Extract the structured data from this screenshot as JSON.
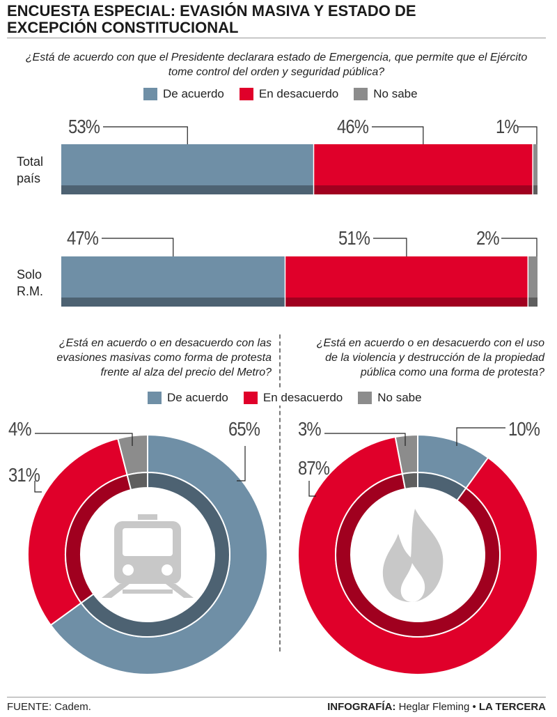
{
  "header": {
    "title_line1": "ENCUESTA ESPECIAL: EVASIÓN MASIVA Y ESTADO DE",
    "title_line2": "EXCEPCIÓN CONSTITUCIONAL"
  },
  "colors": {
    "agree": "#6f8fa6",
    "agree_dark": "#4d6272",
    "disagree": "#e0002a",
    "disagree_dark": "#a0001f",
    "unsure": "#8c8c8c",
    "unsure_dark": "#5e5e5e"
  },
  "legend": {
    "agree": "De acuerdo",
    "disagree": "En desacuerdo",
    "unsure": "No sabe"
  },
  "q1": {
    "text_line1": "¿Está de acuerdo con que el Presidente declarara estado de Emergencia, que permite que el Ejército",
    "text_line2": "tome control del orden y seguridad pública?"
  },
  "q2": {
    "text_line1": "¿Está en acuerdo o en desacuerdo con las",
    "text_line2": "evasiones masivas como forma de protesta",
    "text_line3": "frente al alza del precio del Metro?"
  },
  "q3": {
    "text_line1": "¿Está en acuerdo o en desacuerdo con el uso",
    "text_line2": "de la violencia y destrucción de la propiedad",
    "text_line3": "pública como una forma de protesta?"
  },
  "rows": {
    "total_line1": "Total",
    "total_line2": "país",
    "rm_line1": "Solo",
    "rm_line2": "R.M."
  },
  "chart_data": [
    {
      "type": "bar",
      "orientation": "horizontal-stacked",
      "categories": [
        "Total país",
        "Solo R.M."
      ],
      "series": [
        {
          "name": "De acuerdo",
          "values": [
            53,
            47
          ]
        },
        {
          "name": "En desacuerdo",
          "values": [
            46,
            51
          ]
        },
        {
          "name": "No sabe",
          "values": [
            1,
            2
          ]
        }
      ],
      "labels": {
        "total": [
          "53%",
          "46%",
          "1%"
        ],
        "rm": [
          "47%",
          "51%",
          "2%"
        ]
      }
    },
    {
      "type": "pie",
      "style": "donut",
      "icon": "train-icon",
      "slices": [
        {
          "name": "De acuerdo",
          "value": 65,
          "label": "65%"
        },
        {
          "name": "En desacuerdo",
          "value": 31,
          "label": "31%"
        },
        {
          "name": "No sabe",
          "value": 4,
          "label": "4%"
        }
      ]
    },
    {
      "type": "pie",
      "style": "donut",
      "icon": "fire-icon",
      "slices": [
        {
          "name": "De acuerdo",
          "value": 10,
          "label": "10%"
        },
        {
          "name": "En desacuerdo",
          "value": 87,
          "label": "87%"
        },
        {
          "name": "No sabe",
          "value": 3,
          "label": "3%"
        }
      ]
    }
  ],
  "footer": {
    "source": "FUENTE: Cadem.",
    "credit_prefix": "INFOGRAFÍA:",
    "credit_name": " Heglar Fleming •",
    "brand": " LA TERCERA"
  }
}
